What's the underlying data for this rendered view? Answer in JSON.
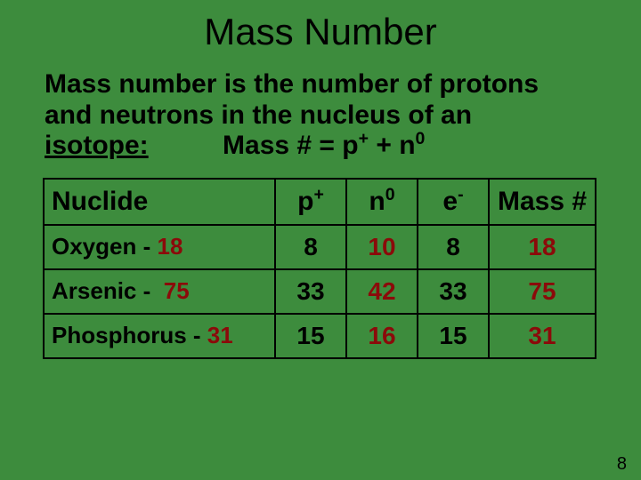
{
  "title": "Mass Number",
  "desc_l1": "Mass number is the number of protons",
  "desc_l2": "and neutrons in the nucleus of an",
  "isotope_word": "isotope:",
  "formula_lead": "Mass # = p",
  "formula_plus": "+",
  "formula_mid": " + n",
  "formula_zero": "0",
  "headers": {
    "nuclide": "Nuclide",
    "p": "p",
    "p_sup": "+",
    "n": "n",
    "n_sup": "0",
    "e": "e",
    "e_sup": "-",
    "mass": "Mass #"
  },
  "rows": [
    {
      "name": "Oxygen",
      "sep": " - ",
      "massno_label": "18",
      "p": "8",
      "n": "10",
      "e": "8",
      "mass": "18"
    },
    {
      "name": "Arsenic",
      "sep": " - ",
      "massno_label": "75",
      "p": "33",
      "n": "42",
      "e": "33",
      "mass": "75"
    },
    {
      "name": "Phosphorus",
      "sep": " - ",
      "massno_label": "31",
      "p": "15",
      "n": "16",
      "e": "15",
      "mass": "31"
    }
  ],
  "colors": {
    "background": "#3d8c3d",
    "text": "#000000",
    "accent_red": "#8b0a0a",
    "border": "#000000"
  },
  "page_number": "8"
}
